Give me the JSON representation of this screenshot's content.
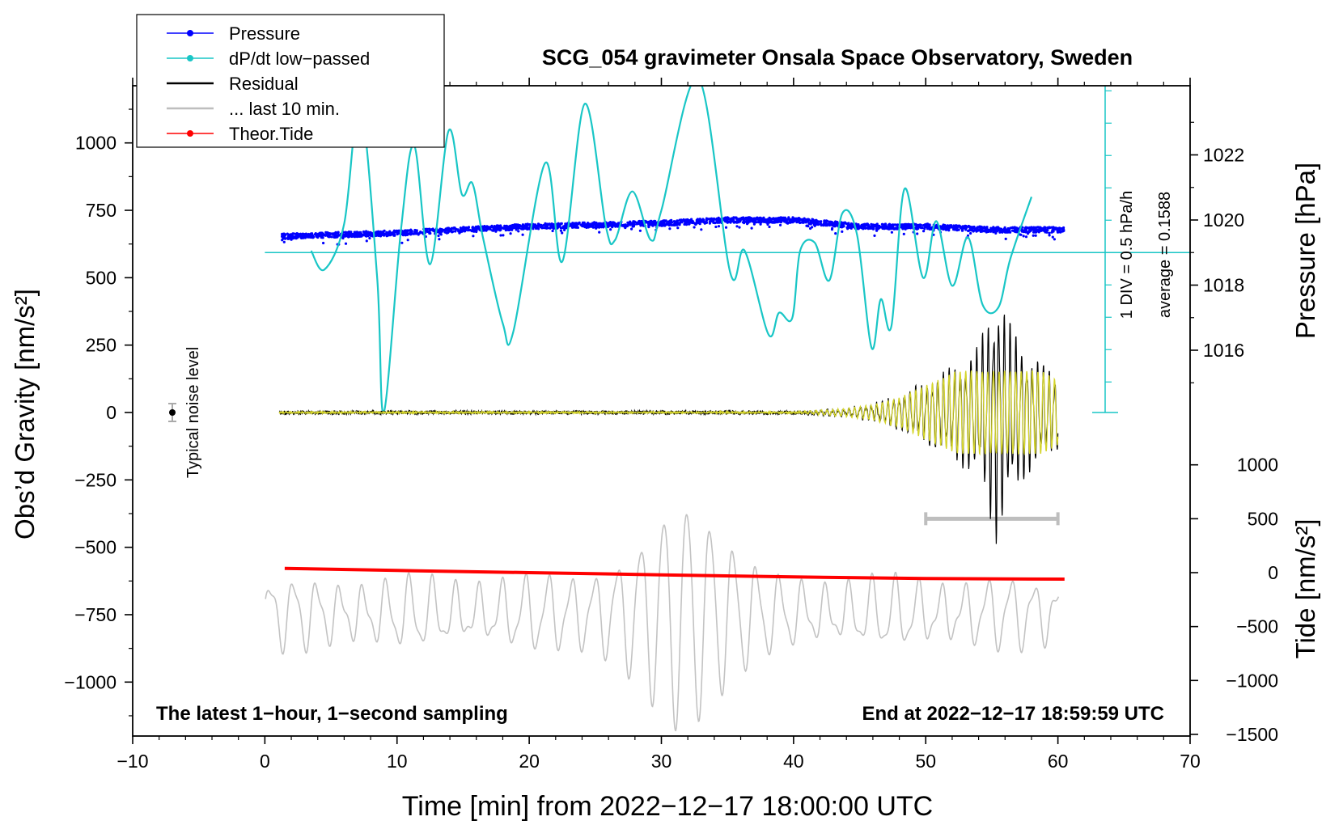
{
  "chart_data": {
    "type": "line",
    "title": "SCG_054 gravimeter Onsala Space Observatory, Sweden",
    "xlabel": "Time [min] from 2022−12−17 18:00:00 UTC",
    "ylabel_left": "Obs’d Gravity [nm/s²]",
    "ylabel_right_pressure": "Pressure [hPa]",
    "ylabel_right_tide": "Tide [nm/s²]",
    "xlim": [
      -10,
      70
    ],
    "ylim": [
      -1200,
      1200
    ],
    "x_ticks": [
      "−10",
      "0",
      "10",
      "20",
      "30",
      "40",
      "50",
      "60",
      "70"
    ],
    "y_ticks": [
      "1000",
      "750",
      "500",
      "250",
      "0",
      "−250",
      "−500",
      "−750",
      "−1000"
    ],
    "pressure_ticks": [
      "1022",
      "1020",
      "1018",
      "1016"
    ],
    "tide_ticks": [
      "1000",
      "500",
      "0",
      "−500",
      "−1000",
      "−1500"
    ],
    "legend": [
      {
        "label": "Pressure",
        "color": "#0000ff",
        "marker": true
      },
      {
        "label": "dP/dt low−passed",
        "color": "#19c6c6",
        "marker": true
      },
      {
        "label": "Residual",
        "color": "#000000",
        "marker": false
      },
      {
        "label": "... last 10 min.",
        "color": "#bebebe",
        "marker": false
      },
      {
        "label": "Theor.Tide",
        "color": "#ff0000",
        "marker": true
      }
    ],
    "annotations": {
      "noise": "Typical noise level",
      "div": "1 DIV = 0.5 hPa/h",
      "average": "average = 0.1588",
      "bottom_left": "The latest 1−hour, 1−second sampling",
      "bottom_right": "End at 2022−12−17 18:59:59 UTC"
    },
    "series": [
      {
        "name": "Pressure",
        "unit": "hPa",
        "x": [
          1.3,
          10,
          20,
          30,
          35,
          40,
          45,
          50,
          55,
          60.5
        ],
        "values": [
          1019.5,
          1019.6,
          1019.8,
          1019.9,
          1020.0,
          1020.0,
          1019.8,
          1019.8,
          1019.7,
          1019.7
        ]
      },
      {
        "name": "dP/dt low−passed",
        "unit": "nm/s² display",
        "x": [
          3.5,
          4.5,
          6,
          7.2,
          8.5,
          9,
          10.3,
          11.3,
          12.5,
          13.9,
          14.9,
          15.7,
          16.5,
          18,
          18.8,
          21.2,
          22.5,
          24.2,
          25.8,
          26.5,
          27.8,
          29.2,
          30,
          32.8,
          35.2,
          36.3,
          38.1,
          38.9,
          39.9,
          40.5,
          41.6,
          42.7,
          43.7,
          44.8,
          45.9,
          46.6,
          47.4,
          48.4,
          49.8,
          50.8,
          52,
          53.2,
          54.3,
          55.5,
          56.4,
          58
        ],
        "values": [
          600,
          530,
          700,
          1150,
          500,
          0,
          680,
          990,
          550,
          1045,
          810,
          850,
          650,
          330,
          300,
          925,
          560,
          1145,
          690,
          640,
          820,
          640,
          750,
          1240,
          520,
          600,
          290,
          370,
          350,
          600,
          630,
          490,
          740,
          660,
          240,
          420,
          320,
          830,
          500,
          710,
          470,
          650,
          400,
          390,
          570,
          800
        ]
      },
      {
        "name": "Residual",
        "unit": "nm/s²",
        "x": [
          1.1,
          20,
          40,
          44,
          46,
          48,
          50,
          52,
          54,
          55.4,
          56.3,
          58,
          60
        ],
        "values": [
          0,
          0,
          0,
          15,
          30,
          60,
          110,
          160,
          230,
          460,
          320,
          200,
          130
        ]
      },
      {
        "name": "Theor.Tide",
        "unit": "nm/s²",
        "x": [
          1.5,
          10,
          20,
          30,
          40,
          50,
          60.5
        ],
        "values": [
          40,
          20,
          0,
          -20,
          -40,
          -55,
          -60
        ]
      },
      {
        "name": "... last 10 min.",
        "unit": "nm/s² (tide axis)",
        "x": [
          50,
          60
        ],
        "values": [
          500,
          500
        ]
      }
    ]
  }
}
